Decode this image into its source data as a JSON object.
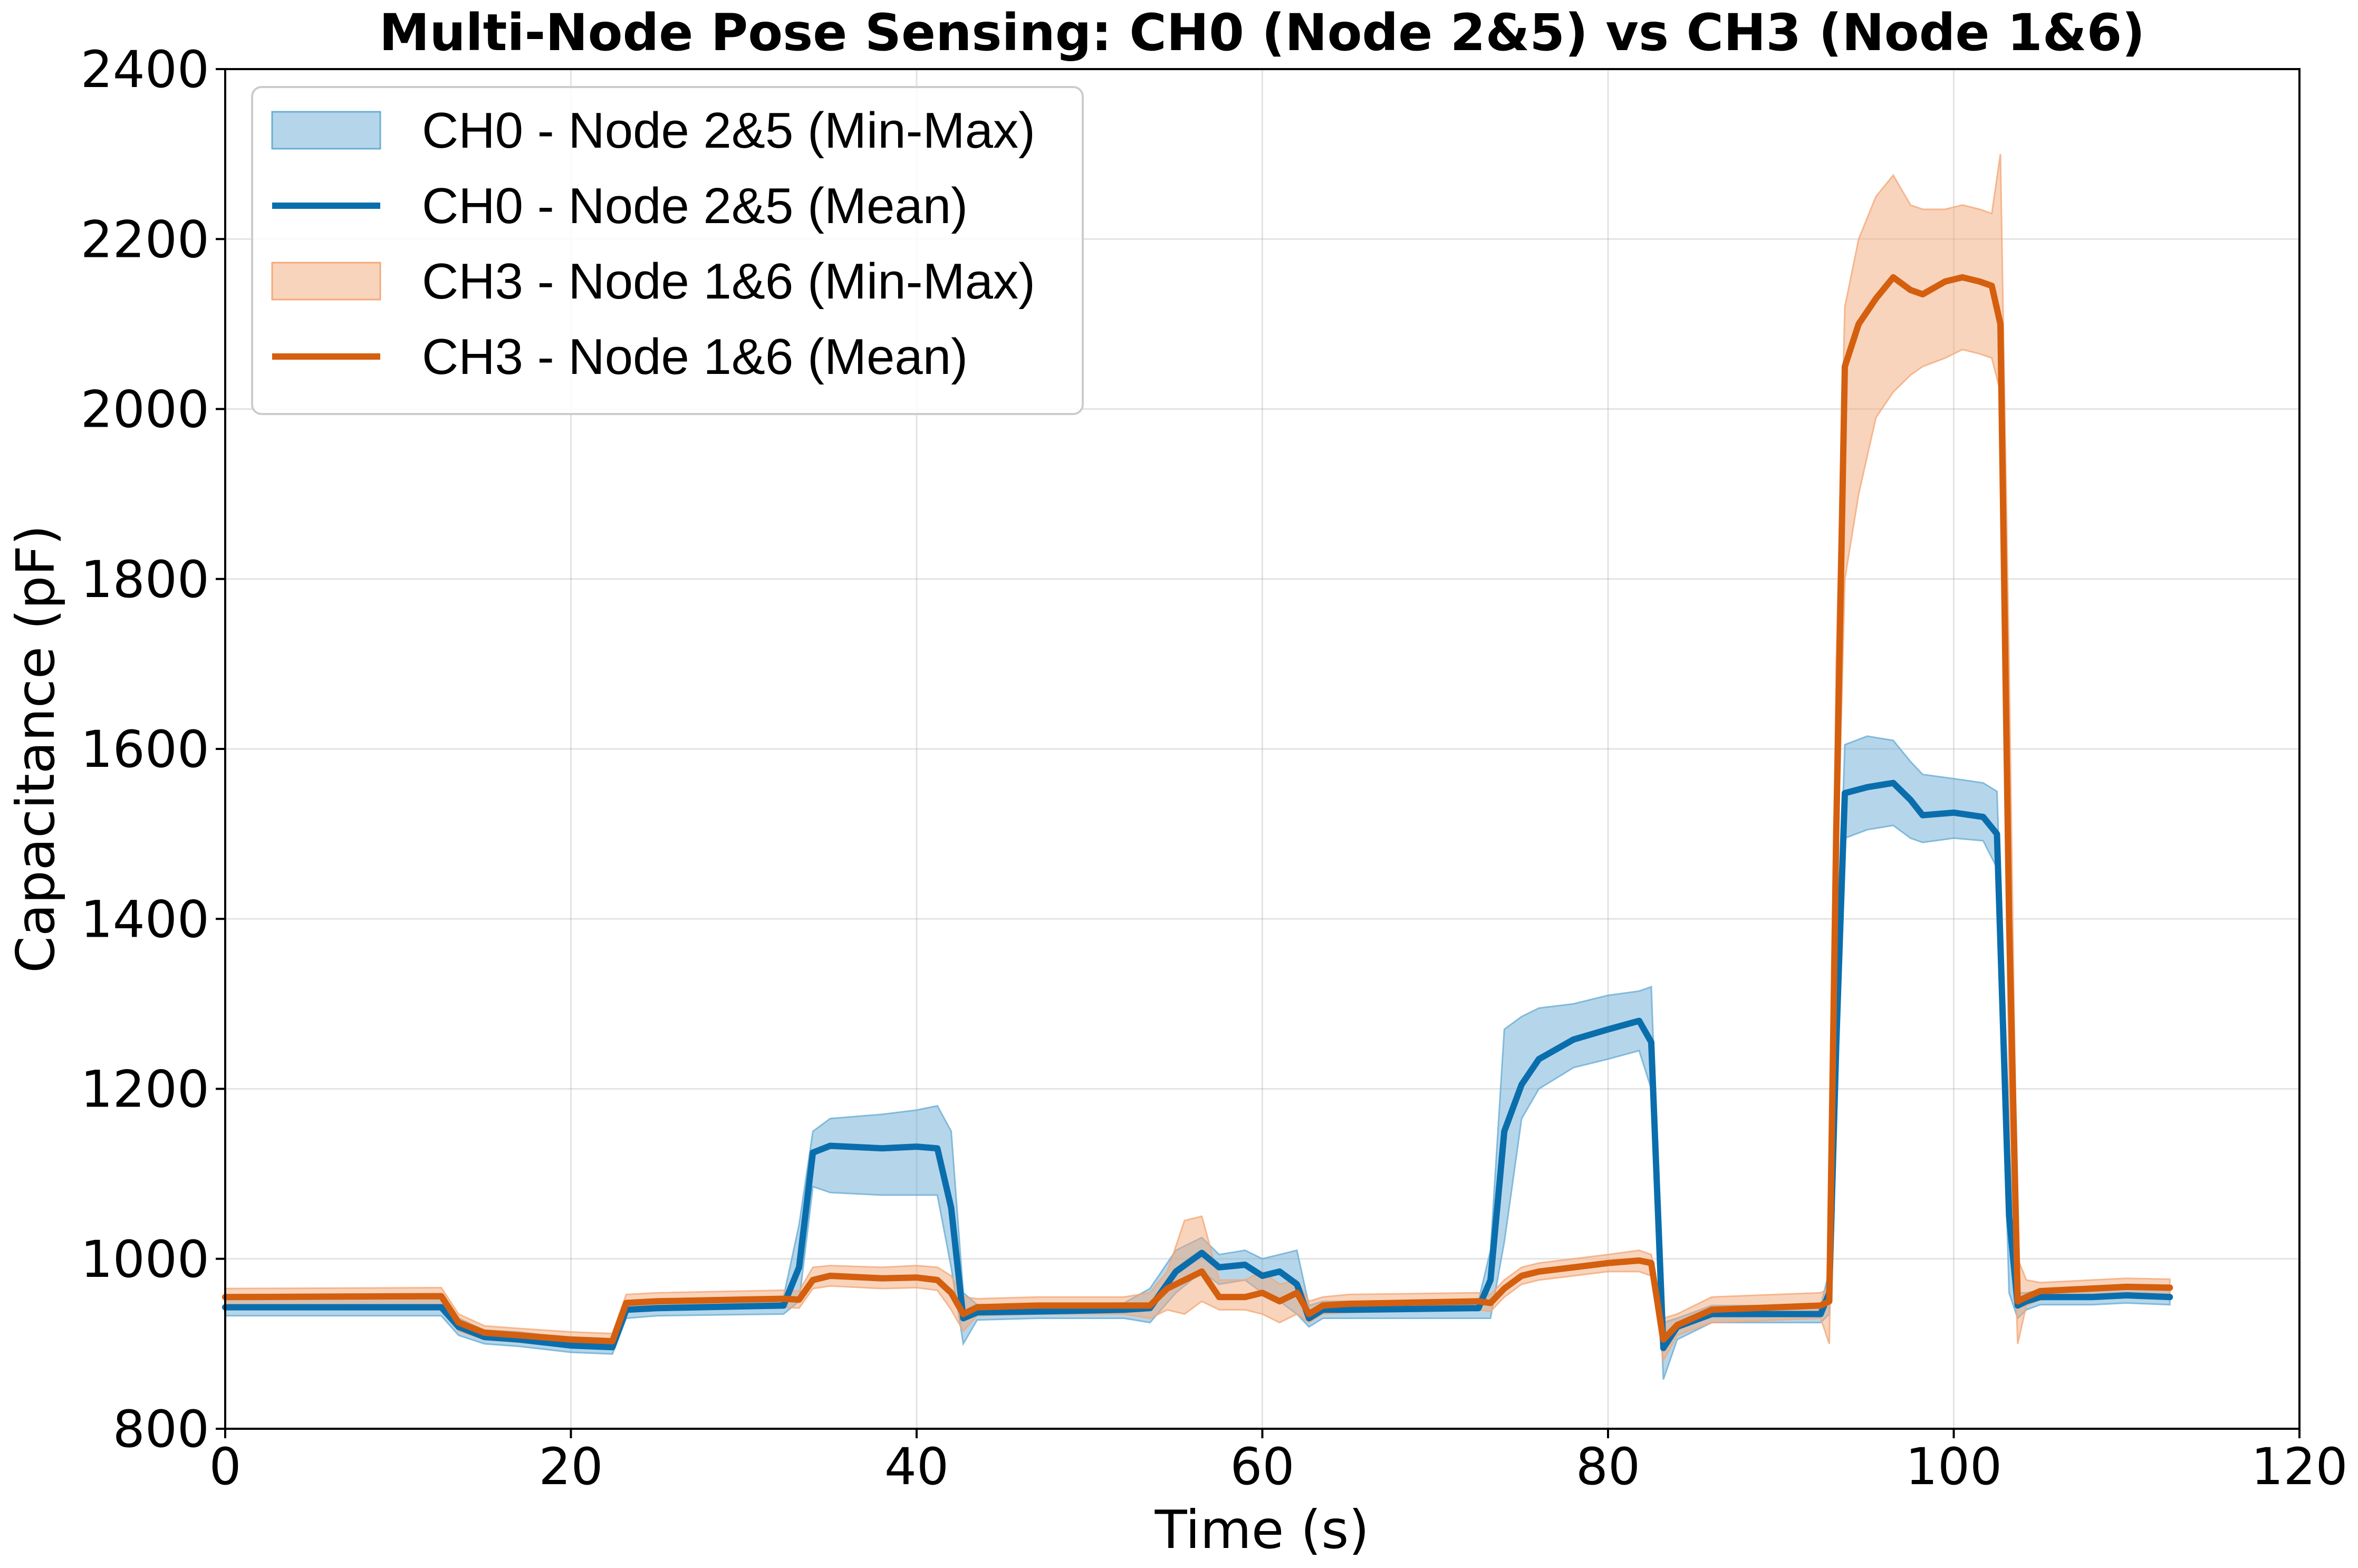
{
  "chart_data": {
    "type": "line",
    "title": "Multi-Node Pose Sensing: CH0 (Node 2&5) vs CH3 (Node 1&6)",
    "xlabel": "Time (s)",
    "ylabel": "Capacitance (pF)",
    "xlim": [
      0,
      120
    ],
    "ylim": [
      800,
      2400
    ],
    "xticks": [
      0,
      20,
      40,
      60,
      80,
      100,
      120
    ],
    "yticks": [
      800,
      1000,
      1200,
      1400,
      1600,
      1800,
      2000,
      2200,
      2400
    ],
    "grid": true,
    "legend_position": "top-left",
    "legend": [
      {
        "label": "CH0 - Node 2&5 (Min-Max)",
        "kind": "band",
        "color": "#6baed6"
      },
      {
        "label": "CH0 - Node 2&5 (Mean)",
        "kind": "line",
        "color": "#0a6ead"
      },
      {
        "label": "CH3 - Node 1&6 (Min-Max)",
        "kind": "band",
        "color": "#f4a97a"
      },
      {
        "label": "CH3 - Node 1&6 (Mean)",
        "kind": "line",
        "color": "#d45f0e"
      }
    ],
    "series": [
      {
        "name": "CH0 - Node 2&5",
        "color": "#0a6ead",
        "band_color": "#6baed6",
        "x": [
          0,
          12.5,
          13.5,
          15,
          17,
          20,
          22.4,
          23.2,
          25,
          32.3,
          33.2,
          34,
          35,
          38,
          40,
          41.2,
          42,
          42.7,
          43.5,
          47,
          52,
          53.5,
          55,
          56.5,
          57.5,
          59,
          60,
          61,
          62,
          62.7,
          63.5,
          65,
          72.5,
          73.2,
          74,
          75,
          76,
          78,
          80,
          81.8,
          82.5,
          83.2,
          84,
          86,
          92.3,
          92.8,
          93.2,
          93.7,
          95,
          96.5,
          97.5,
          98.2,
          100,
          101.7,
          102.5,
          103.2,
          103.7,
          104.2,
          105,
          108,
          110,
          112.5
        ],
        "mean": [
          943,
          943,
          920,
          908,
          905,
          898,
          896,
          940,
          942,
          945,
          990,
          1125,
          1133,
          1130,
          1132,
          1130,
          1060,
          930,
          937,
          938,
          940,
          942,
          985,
          1007,
          990,
          993,
          980,
          985,
          970,
          930,
          940,
          940,
          942,
          975,
          1150,
          1205,
          1235,
          1258,
          1270,
          1280,
          1255,
          895,
          920,
          935,
          935,
          960,
          1250,
          1548,
          1555,
          1560,
          1540,
          1522,
          1525,
          1520,
          1500,
          1050,
          945,
          950,
          955,
          955,
          957,
          955
        ],
        "min": [
          933,
          933,
          910,
          900,
          897,
          890,
          888,
          930,
          933,
          935,
          950,
          1085,
          1078,
          1075,
          1075,
          1075,
          990,
          900,
          928,
          930,
          930,
          925,
          960,
          985,
          970,
          975,
          960,
          950,
          935,
          920,
          930,
          930,
          930,
          930,
          1020,
          1165,
          1200,
          1225,
          1235,
          1245,
          1200,
          858,
          905,
          925,
          925,
          935,
          1200,
          1495,
          1505,
          1510,
          1495,
          1490,
          1495,
          1492,
          1460,
          960,
          930,
          940,
          946,
          946,
          948,
          946
        ],
        "max": [
          953,
          953,
          930,
          916,
          914,
          906,
          904,
          950,
          952,
          955,
          1040,
          1150,
          1165,
          1170,
          1175,
          1180,
          1150,
          960,
          946,
          946,
          948,
          965,
          1010,
          1025,
          1005,
          1010,
          1000,
          1005,
          1010,
          945,
          950,
          950,
          950,
          1010,
          1270,
          1285,
          1295,
          1300,
          1310,
          1315,
          1320,
          925,
          930,
          945,
          945,
          985,
          1300,
          1605,
          1615,
          1610,
          1585,
          1570,
          1565,
          1560,
          1550,
          1130,
          960,
          960,
          963,
          963,
          965,
          963
        ]
      },
      {
        "name": "CH3 - Node 1&6",
        "color": "#d45f0e",
        "band_color": "#f4a97a",
        "x": [
          0,
          12.5,
          13.5,
          15,
          17,
          20,
          22.4,
          23.2,
          25,
          32.3,
          33.2,
          34,
          35,
          38,
          40,
          41.2,
          42,
          42.7,
          43.5,
          47,
          52,
          53.5,
          54.5,
          55.5,
          56.5,
          57.5,
          59,
          60,
          61,
          62,
          62.7,
          63.5,
          65,
          72.5,
          73.2,
          74,
          75,
          76,
          78,
          80,
          81.8,
          82.5,
          83.2,
          84,
          86,
          92.3,
          92.8,
          93.2,
          93.7,
          94.5,
          95.5,
          96.5,
          97.5,
          98.2,
          99.5,
          100.5,
          101.5,
          102.2,
          102.7,
          103.2,
          103.7,
          104.2,
          105,
          108,
          110,
          112.5
        ],
        "mean": [
          955,
          956,
          925,
          913,
          910,
          905,
          903,
          948,
          950,
          953,
          952,
          975,
          980,
          977,
          978,
          975,
          960,
          935,
          943,
          945,
          945,
          945,
          965,
          975,
          985,
          955,
          955,
          960,
          950,
          960,
          935,
          945,
          947,
          950,
          948,
          965,
          980,
          985,
          990,
          995,
          998,
          995,
          905,
          922,
          940,
          945,
          950,
          1500,
          2050,
          2100,
          2130,
          2155,
          2140,
          2135,
          2150,
          2155,
          2150,
          2145,
          2100,
          1400,
          950,
          955,
          962,
          965,
          967,
          966
        ],
        "min": [
          945,
          946,
          915,
          905,
          902,
          896,
          895,
          938,
          940,
          943,
          942,
          965,
          968,
          965,
          966,
          963,
          940,
          915,
          933,
          935,
          935,
          930,
          940,
          935,
          950,
          940,
          940,
          935,
          925,
          935,
          925,
          935,
          937,
          940,
          938,
          955,
          970,
          975,
          980,
          985,
          985,
          980,
          880,
          910,
          925,
          930,
          900,
          1400,
          1800,
          1900,
          1990,
          2020,
          2040,
          2050,
          2060,
          2070,
          2065,
          2060,
          2020,
          1200,
          900,
          945,
          952,
          955,
          957,
          956
        ],
        "max": [
          965,
          966,
          935,
          921,
          918,
          914,
          912,
          958,
          960,
          963,
          962,
          990,
          992,
          990,
          992,
          990,
          980,
          955,
          953,
          955,
          955,
          960,
          985,
          1045,
          1050,
          975,
          975,
          985,
          970,
          975,
          950,
          955,
          958,
          960,
          958,
          975,
          990,
          995,
          1000,
          1005,
          1010,
          1005,
          930,
          935,
          955,
          960,
          965,
          1700,
          2120,
          2200,
          2250,
          2275,
          2240,
          2235,
          2235,
          2240,
          2235,
          2230,
          2300,
          1700,
          1000,
          975,
          972,
          975,
          977,
          976
        ]
      }
    ]
  }
}
